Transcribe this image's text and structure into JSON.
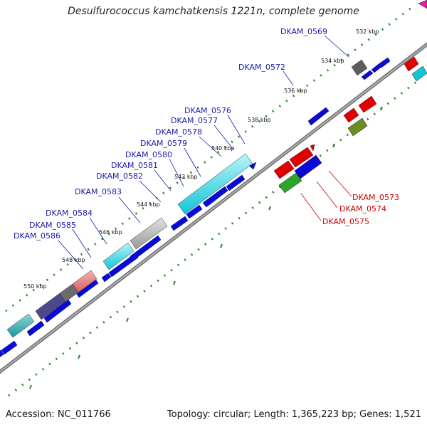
{
  "title": "Desulfurococcus kamchatkensis 1221n, complete genome",
  "footer": {
    "accession": "Accession: NC_011766",
    "info": "Topology: circular; Length: 1,365,223 bp; Genes: 1,521"
  },
  "colors": {
    "forward": "#0000cc",
    "reverse": "#e00000",
    "backbone": "#666666",
    "ruler": "#228b22"
  },
  "kbp_ticks": [
    "532 kbp",
    "534 kbp",
    "536 kbp",
    "538 kbp",
    "540 kbp",
    "542 kbp",
    "544 kbp",
    "546 kbp",
    "548 kbp",
    "550 kbp"
  ],
  "gene_labels": [
    "DKAM_0569",
    "DKAM_0572",
    "DKAM_0576",
    "DKAM_0577",
    "DKAM_0578",
    "DKAM_0579",
    "DKAM_0580",
    "DKAM_0581",
    "DKAM_0582",
    "DKAM_0583",
    "DKAM_0584",
    "DKAM_0585",
    "DKAM_0586",
    "DKAM_0573",
    "DKAM_0574",
    "DKAM_0575"
  ]
}
